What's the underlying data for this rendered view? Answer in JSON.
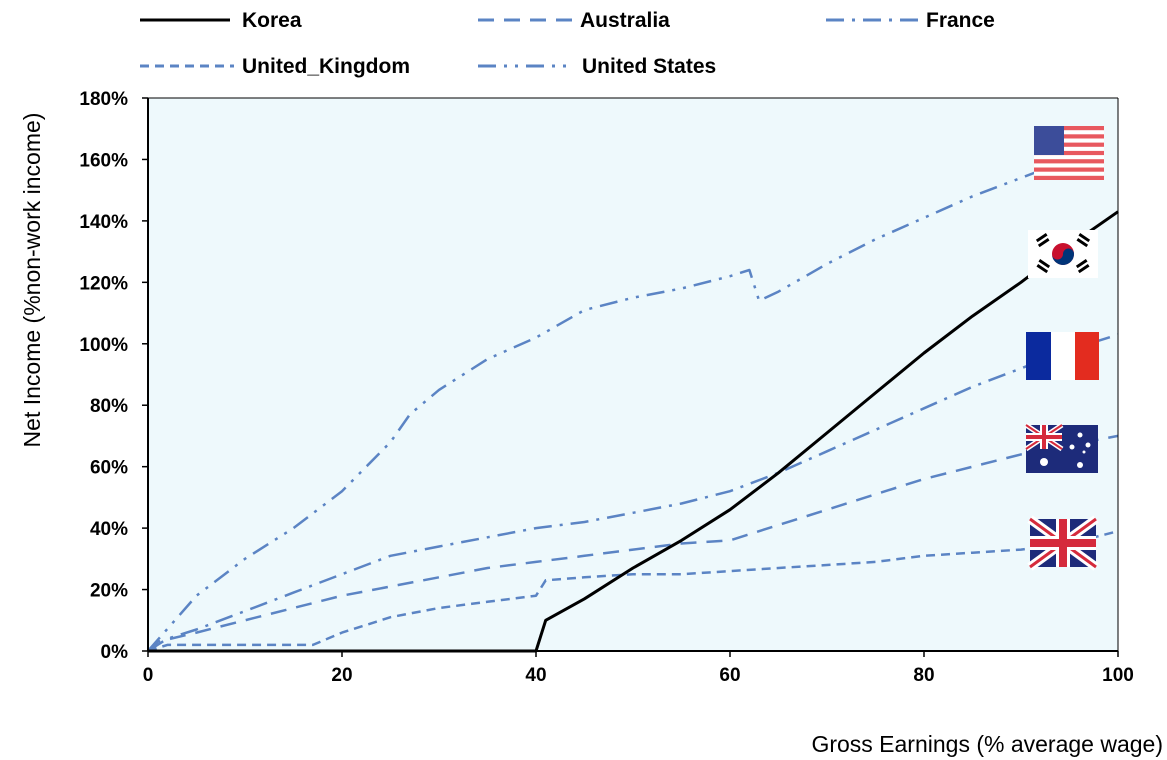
{
  "chart_data": {
    "type": "line",
    "xlabel": "Gross Earnings (% average wage)",
    "ylabel": "Net Income (%non-work income)",
    "xlim": [
      0,
      100
    ],
    "ylim": [
      0,
      180
    ],
    "x_ticks": [
      0,
      20,
      40,
      60,
      80,
      100
    ],
    "x_tick_labels": [
      "0",
      "20",
      "40",
      "60",
      "80",
      "100"
    ],
    "y_ticks": [
      0,
      20,
      40,
      60,
      80,
      100,
      120,
      140,
      160,
      180
    ],
    "y_tick_labels": [
      "0%",
      "20%",
      "40%",
      "60%",
      "80%",
      "100%",
      "120%",
      "140%",
      "160%",
      "180%"
    ],
    "grid": false,
    "legend_position": "top",
    "plot_background": "#eef9fc",
    "series": [
      {
        "name": "Korea",
        "color": "#000000",
        "dash": "solid",
        "x": [
          0,
          40,
          41,
          45,
          50,
          55,
          60,
          65,
          70,
          75,
          80,
          85,
          90,
          95,
          100
        ],
        "values": [
          0,
          0,
          10,
          17,
          27,
          36,
          46,
          58,
          71,
          84,
          97,
          109,
          120,
          132,
          143
        ]
      },
      {
        "name": "Australia",
        "color": "#5b84c4",
        "dash": "long-dash",
        "x": [
          0,
          1,
          5,
          10,
          15,
          20,
          25,
          30,
          35,
          40,
          45,
          50,
          55,
          60,
          65,
          70,
          75,
          80,
          85,
          90,
          95,
          100
        ],
        "values": [
          0,
          3,
          6,
          10,
          14,
          18,
          21,
          24,
          27,
          29,
          31,
          33,
          35,
          36,
          41,
          46,
          51,
          56,
          60,
          64,
          67,
          70
        ]
      },
      {
        "name": "France",
        "color": "#5b84c4",
        "dash": "dash-dot",
        "x": [
          0,
          2,
          5,
          10,
          15,
          20,
          25,
          30,
          35,
          40,
          45,
          50,
          55,
          60,
          65,
          70,
          75,
          80,
          85,
          90,
          95,
          100
        ],
        "values": [
          0,
          4,
          7,
          13,
          19,
          25,
          31,
          34,
          37,
          40,
          42,
          45,
          48,
          52,
          58,
          65,
          72,
          79,
          86,
          92,
          98,
          103
        ]
      },
      {
        "name": "United_Kingdom",
        "color": "#5b84c4",
        "dash": "short-dash",
        "x": [
          0,
          2,
          5,
          10,
          15,
          17,
          20,
          25,
          30,
          35,
          40,
          41,
          45,
          50,
          55,
          60,
          65,
          70,
          75,
          80,
          85,
          90,
          95,
          100
        ],
        "values": [
          0,
          2,
          2,
          2,
          2,
          2,
          6,
          11,
          14,
          16,
          18,
          23,
          24,
          25,
          25,
          26,
          27,
          28,
          29,
          31,
          32,
          33,
          35,
          39
        ]
      },
      {
        "name": "United States",
        "color": "#5b84c4",
        "dash": "dash-dot-dot",
        "x": [
          0,
          5,
          10,
          15,
          20,
          25,
          27,
          30,
          35,
          40,
          45,
          50,
          55,
          60,
          62,
          63,
          65,
          70,
          75,
          80,
          85,
          90,
          95
        ],
        "values": [
          0,
          18,
          30,
          40,
          52,
          68,
          77,
          85,
          95,
          102,
          111,
          115,
          118,
          122,
          124,
          114,
          117,
          126,
          134,
          141,
          148,
          154,
          160
        ]
      }
    ],
    "flag_icons": [
      "us-flag-icon",
      "korea-flag-icon",
      "france-flag-icon",
      "australia-flag-icon",
      "uk-flag-icon"
    ]
  }
}
